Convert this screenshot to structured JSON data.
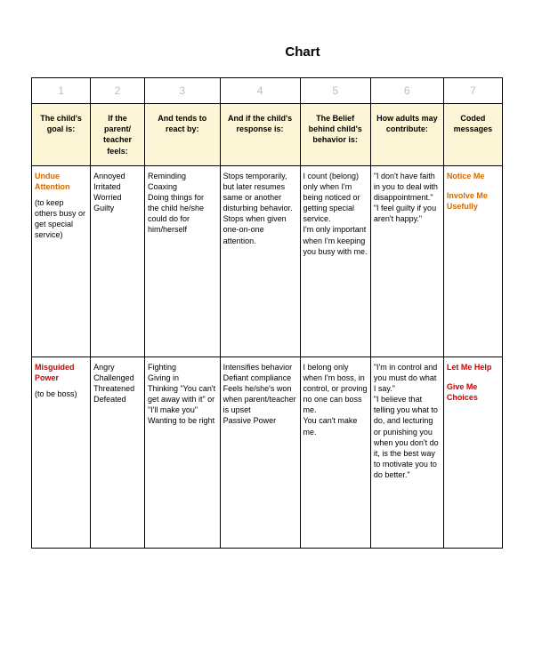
{
  "title": "Chart",
  "colors": {
    "header_bg": "#fdf6d6",
    "number_text": "#bdbdbd",
    "orange": "#d36a00",
    "red": "#d00000",
    "border": "#000000",
    "background": "#ffffff"
  },
  "font": {
    "family": "Arial, Helvetica, sans-serif",
    "title_size_pt": 15,
    "header_size_pt": 9,
    "cell_size_pt": 9,
    "number_size_pt": 12
  },
  "table": {
    "type": "table",
    "column_widths_pct": [
      12.5,
      11.5,
      16,
      17,
      15,
      15.5,
      12.5
    ],
    "numbers": [
      "1",
      "2",
      "3",
      "4",
      "5",
      "6",
      "7"
    ],
    "headers": [
      "The child's goal is:",
      "If the parent/ teacher feels:",
      "And tends to react by:",
      "And if the child's response is:",
      "The Belief behind child's behavior is:",
      "How adults may contribute:",
      "Coded messages"
    ],
    "rows": [
      {
        "goal_main": "Undue Attention",
        "goal_main_color": "orange",
        "goal_sub": "(to keep others busy or get special service)",
        "feels": "Annoyed\nIrritated\nWorried\nGuilty",
        "react": "Reminding\nCoaxing\nDoing things for the child he/she could do for him/herself",
        "response": "Stops temporarily, but later resumes same or another disturbing behavior.\nStops when given one-on-one attention.",
        "belief": "I count (belong) only when I'm being noticed or getting special service.\nI'm only important when I'm keeping you busy with me.",
        "contribute": "\"I don't have faith in you to deal with disappointment.\"\n\"I feel guilty if you aren't happy.\"",
        "coded": [
          "Notice Me",
          "Involve Me Usefully"
        ],
        "coded_color": "orange"
      },
      {
        "goal_main": "Misguided Power",
        "goal_main_color": "red",
        "goal_sub": "(to be boss)",
        "feels": "Angry\nChallenged\nThreatened\nDefeated",
        "react": "Fighting\nGiving in\nThinking \"You can't get away with it\" or\n\"I'll make you\"\nWanting to be right",
        "response": "Intensifies behavior\nDefiant compliance\nFeels he/she's won when parent/teacher is upset\nPassive Power",
        "belief": "I belong only when I'm boss, in control, or proving no one can boss me.\nYou can't make me.",
        "contribute": "\"I'm in control and you must do what I say.\"\n\"I believe that telling you what to do, and lecturing or punishing you when you don't do it, is the best way to motivate you to do better.\"",
        "coded": [
          "Let Me Help",
          "Give Me Choices"
        ],
        "coded_color": "red"
      }
    ]
  }
}
